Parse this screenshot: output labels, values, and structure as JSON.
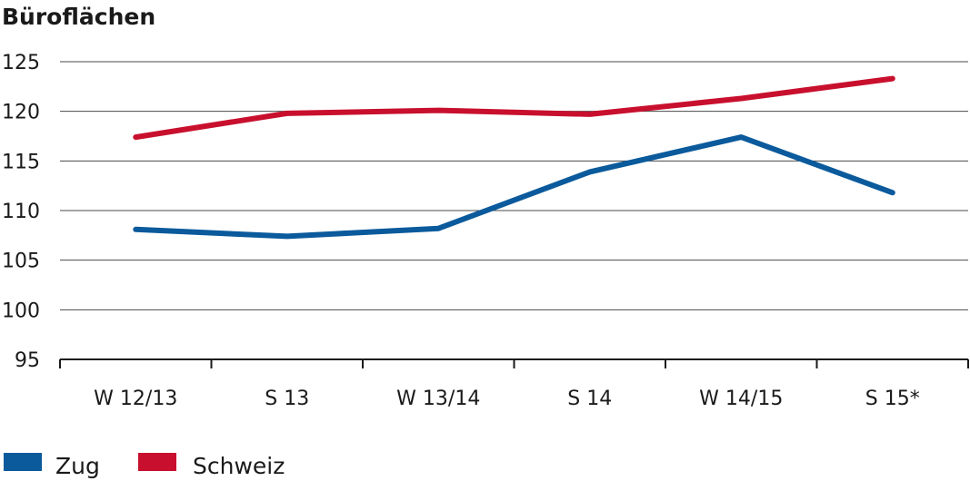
{
  "chart_data": {
    "type": "line",
    "title": "Büroflächen",
    "categories": [
      "W 12/13",
      "S 13",
      "W 13/14",
      "S 14",
      "W 14/15",
      "S 15*"
    ],
    "ylim": [
      95,
      125
    ],
    "yticks": [
      125,
      120,
      115,
      110,
      105,
      100,
      95
    ],
    "grid": true,
    "legend_position": "bottom-left",
    "series": [
      {
        "name": "Zug",
        "color": "#0a5a9c",
        "values": [
          108.1,
          107.4,
          108.2,
          113.9,
          117.4,
          111.8
        ]
      },
      {
        "name": "Schweiz",
        "color": "#c8102e",
        "values": [
          117.4,
          119.8,
          120.1,
          119.7,
          121.3,
          123.3
        ]
      }
    ]
  }
}
